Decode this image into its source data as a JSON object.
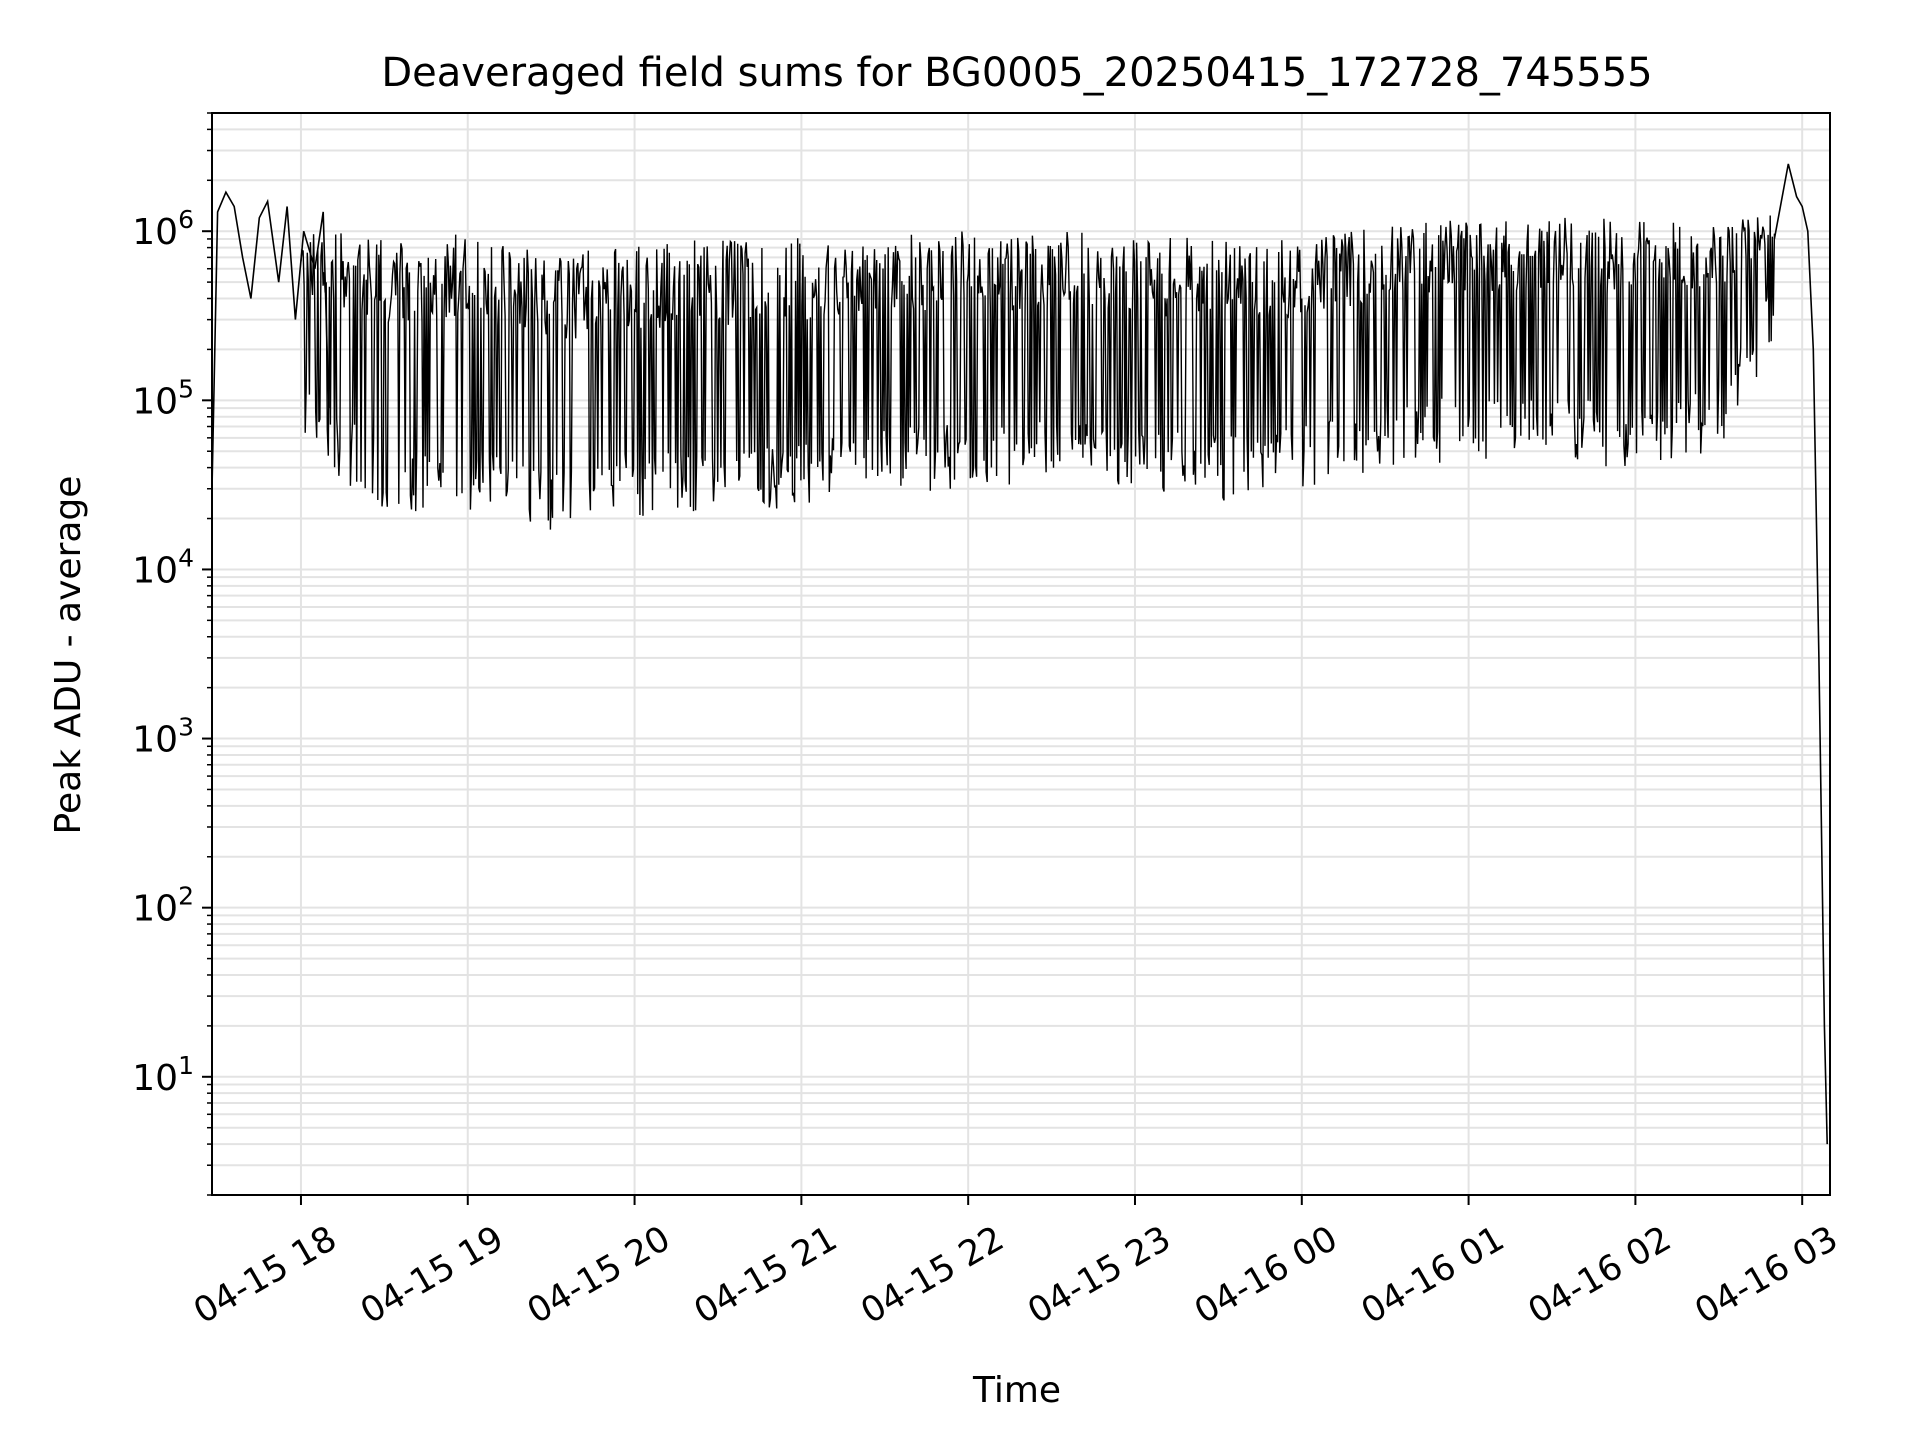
{
  "chart_data": {
    "type": "line",
    "title": "Deaveraged field sums for BG0005_20250415_172728_745555",
    "xlabel": "Time",
    "ylabel": "Peak ADU - average",
    "y_scale": "log",
    "xlim": [
      "2025-04-15 17:28",
      "2025-04-16 03:10"
    ],
    "ylim": [
      2,
      5000000
    ],
    "grid": true,
    "line_color": "#000000",
    "grid_color": "#e3e3e3",
    "x_ticks": [
      {
        "label": "04-15 18",
        "value": "2025-04-15 18:00"
      },
      {
        "label": "04-15 19",
        "value": "2025-04-15 19:00"
      },
      {
        "label": "04-15 20",
        "value": "2025-04-15 20:00"
      },
      {
        "label": "04-15 21",
        "value": "2025-04-15 21:00"
      },
      {
        "label": "04-15 22",
        "value": "2025-04-15 22:00"
      },
      {
        "label": "04-15 23",
        "value": "2025-04-15 23:00"
      },
      {
        "label": "04-16 00",
        "value": "2025-04-16 00:00"
      },
      {
        "label": "04-16 01",
        "value": "2025-04-16 01:00"
      },
      {
        "label": "04-16 02",
        "value": "2025-04-16 02:00"
      },
      {
        "label": "04-16 03",
        "value": "2025-04-16 03:00"
      }
    ],
    "y_ticks": [
      {
        "base": "10",
        "exp": "1",
        "value": 10
      },
      {
        "base": "10",
        "exp": "2",
        "value": 100
      },
      {
        "base": "10",
        "exp": "3",
        "value": 1000
      },
      {
        "base": "10",
        "exp": "4",
        "value": 10000
      },
      {
        "base": "10",
        "exp": "5",
        "value": 100000
      },
      {
        "base": "10",
        "exp": "6",
        "value": 1000000
      }
    ],
    "series": [
      {
        "x": [
          "2025-04-15 17:28",
          "2025-04-15 17:30",
          "2025-04-15 17:33",
          "2025-04-15 17:36",
          "2025-04-15 17:39",
          "2025-04-15 17:42",
          "2025-04-15 17:45",
          "2025-04-15 17:48",
          "2025-04-15 17:52",
          "2025-04-15 17:55",
          "2025-04-15 17:58",
          "2025-04-15 18:01",
          "2025-04-15 18:05",
          "2025-04-15 18:08",
          "2025-04-15 18:10"
        ],
        "y": [
          30000,
          1300000,
          1700000,
          1400000,
          700000,
          400000,
          1200000,
          1500000,
          500000,
          1400000,
          300000,
          1000000,
          600000,
          1300000,
          90000
        ]
      }
    ],
    "envelope": {
      "description_free": true,
      "x": [
        "2025-04-15 18:00",
        "2025-04-15 18:30",
        "2025-04-15 19:00",
        "2025-04-15 19:30",
        "2025-04-15 20:00",
        "2025-04-15 20:30",
        "2025-04-15 21:00",
        "2025-04-15 21:30",
        "2025-04-15 22:00",
        "2025-04-15 22:30",
        "2025-04-15 23:00",
        "2025-04-15 23:30",
        "2025-04-16 00:00",
        "2025-04-16 00:30",
        "2025-04-16 01:00",
        "2025-04-16 01:30",
        "2025-04-16 02:00",
        "2025-04-16 02:30",
        "2025-04-16 02:50"
      ],
      "upper": [
        1000000,
        950000,
        1000000,
        800000,
        850000,
        900000,
        950000,
        1000000,
        1000000,
        1000000,
        950000,
        950000,
        900000,
        1100000,
        1200000,
        1200000,
        1200000,
        1100000,
        1300000
      ],
      "lower": [
        50000,
        22000,
        22000,
        15000,
        20000,
        20000,
        22000,
        28000,
        30000,
        30000,
        28000,
        25000,
        28000,
        38000,
        45000,
        40000,
        40000,
        50000,
        200000
      ]
    },
    "tail": {
      "x": [
        "2025-04-16 02:50",
        "2025-04-16 02:55",
        "2025-04-16 02:58",
        "2025-04-16 03:00",
        "2025-04-16 03:02",
        "2025-04-16 03:04",
        "2025-04-16 03:06",
        "2025-04-16 03:08",
        "2025-04-16 03:09"
      ],
      "y": [
        900000,
        2500000,
        1600000,
        1400000,
        1000000,
        200000,
        3000,
        20,
        4
      ]
    }
  }
}
